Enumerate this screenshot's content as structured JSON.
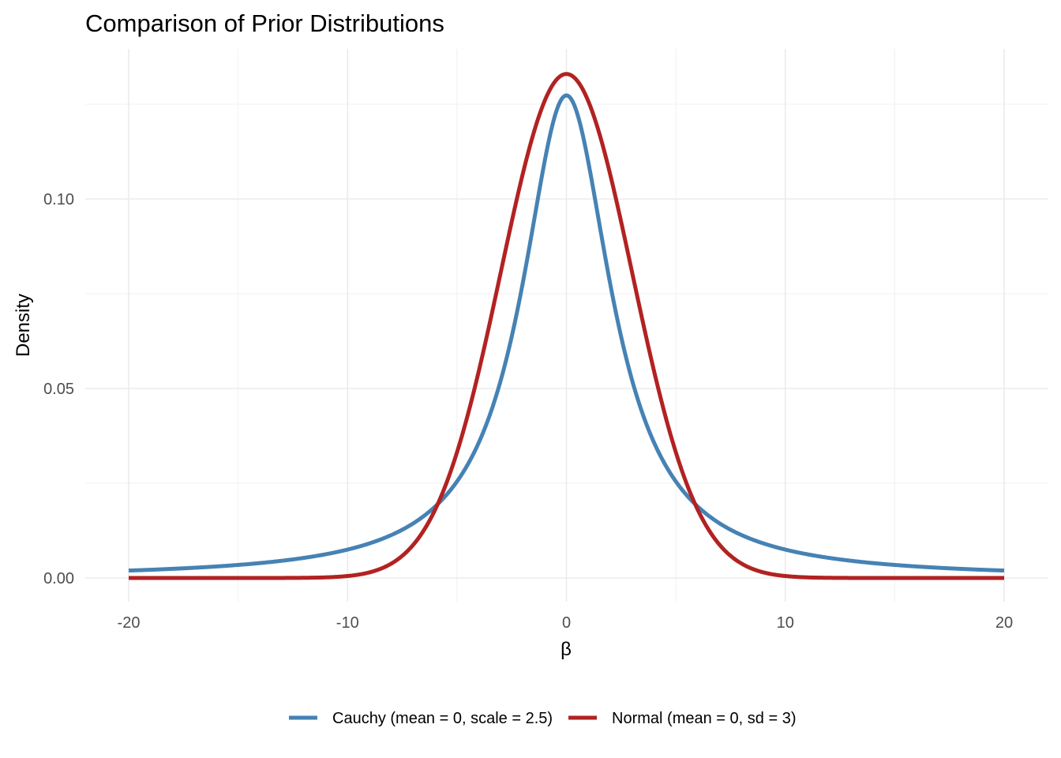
{
  "chart_data": {
    "type": "line",
    "title": "Comparison of Prior Distributions",
    "xlabel": "β",
    "ylabel": "Density",
    "xlim": [
      -20,
      20
    ],
    "ylim": [
      0,
      0.133
    ],
    "x_ticks": [
      -20,
      -10,
      0,
      10,
      20
    ],
    "x_tick_labels": [
      "-20",
      "-10",
      "0",
      "10",
      "20"
    ],
    "y_ticks": [
      0,
      0.05,
      0.1
    ],
    "y_tick_labels": [
      "0.00",
      "0.05",
      "0.10"
    ],
    "grid": true,
    "legend_position": "bottom",
    "series": [
      {
        "name": "Cauchy (mean = 0, scale = 2.5)",
        "color": "#4682B4",
        "distribution": "cauchy",
        "location": 0,
        "scale": 2.5
      },
      {
        "name": "Normal (mean = 0, sd = 3)",
        "color": "#B22222",
        "distribution": "normal",
        "mean": 0,
        "sd": 3
      }
    ]
  }
}
